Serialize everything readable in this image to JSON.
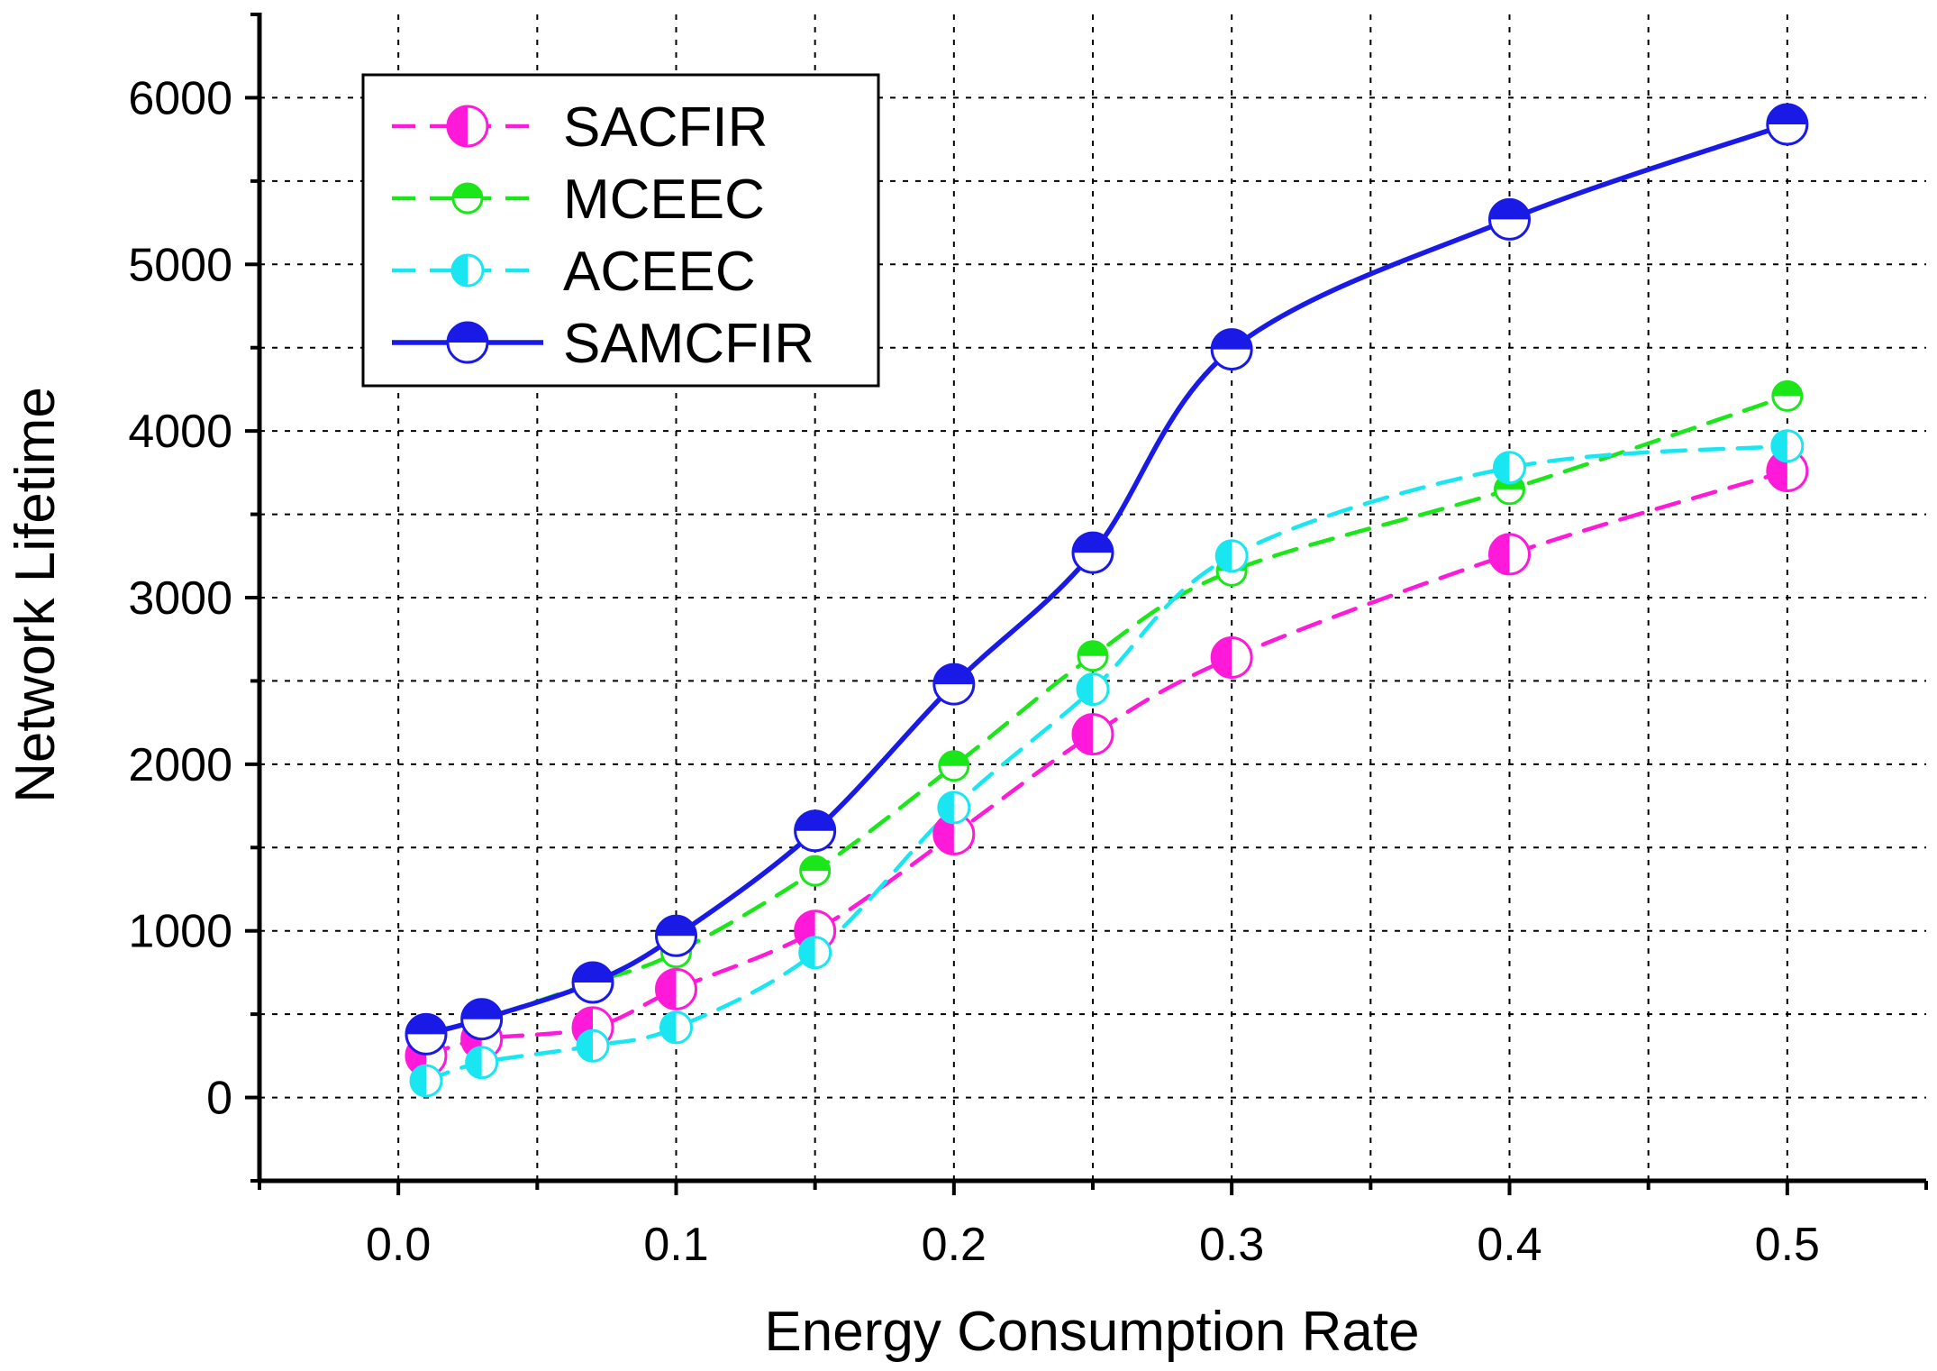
{
  "chart_data": {
    "type": "line",
    "title": "",
    "xlabel": "Energy Consumption Rate",
    "ylabel": "Network Lifetime",
    "xlim": [
      -0.05,
      0.55
    ],
    "ylim": [
      -500,
      6500
    ],
    "xticks": [
      0.0,
      0.1,
      0.2,
      0.3,
      0.4,
      0.5
    ],
    "xtick_labels": [
      "0.0",
      "0.1",
      "0.2",
      "0.3",
      "0.4",
      "0.5"
    ],
    "yticks": [
      0,
      1000,
      2000,
      3000,
      4000,
      5000,
      6000
    ],
    "ytick_labels": [
      "0",
      "1000",
      "2000",
      "3000",
      "4000",
      "5000",
      "6000"
    ],
    "grid": true,
    "legend_position": "top-left",
    "series": [
      {
        "name": "SACFIR",
        "color": "#ff1ad9",
        "line_style": "dashed",
        "marker": "circle-half-left",
        "x": [
          0.01,
          0.03,
          0.07,
          0.1,
          0.15,
          0.2,
          0.25,
          0.3,
          0.4,
          0.5
        ],
        "y": [
          250,
          350,
          420,
          650,
          1000,
          1580,
          2180,
          2640,
          3260,
          3760
        ]
      },
      {
        "name": "MCEEC",
        "color": "#1ae61a",
        "line_style": "dashed",
        "marker": "circle-half-top",
        "x": [
          0.01,
          0.03,
          0.07,
          0.1,
          0.15,
          0.2,
          0.25,
          0.3,
          0.4,
          0.5
        ],
        "y": [
          390,
          470,
          690,
          870,
          1360,
          1990,
          2650,
          3160,
          3650,
          4210
        ]
      },
      {
        "name": "ACEEC",
        "color": "#1ae6f2",
        "line_style": "dashed",
        "marker": "circle-half-left",
        "x": [
          0.01,
          0.03,
          0.07,
          0.1,
          0.15,
          0.2,
          0.25,
          0.3,
          0.4,
          0.5
        ],
        "y": [
          100,
          210,
          310,
          420,
          870,
          1740,
          2450,
          3250,
          3780,
          3910
        ]
      },
      {
        "name": "SAMCFIR",
        "color": "#1a1ae6",
        "line_style": "solid",
        "marker": "circle-half-top",
        "x": [
          0.01,
          0.03,
          0.07,
          0.1,
          0.15,
          0.2,
          0.25,
          0.3,
          0.4,
          0.5
        ],
        "y": [
          380,
          470,
          690,
          970,
          1600,
          2480,
          3270,
          4490,
          5270,
          5840
        ]
      }
    ]
  }
}
